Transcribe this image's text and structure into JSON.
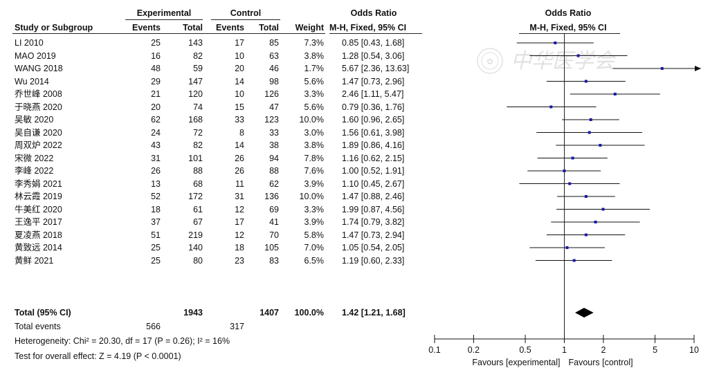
{
  "headers": {
    "group_experimental": "Experimental",
    "group_control": "Control",
    "or_header_table": "Odds Ratio",
    "or_header_plot": "Odds Ratio",
    "col_study": "Study or Subgroup",
    "col_e_events": "Events",
    "col_e_total": "Total",
    "col_c_events": "Events",
    "col_c_total": "Total",
    "col_weight": "Weight",
    "col_method": "M-H, Fixed, 95% CI",
    "plot_method": "M-H, Fixed, 95% CI"
  },
  "studies": [
    {
      "name": "LI 2010",
      "e_events": "25",
      "e_total": "143",
      "c_events": "17",
      "c_total": "85",
      "weight": "7.3%",
      "ci_text": "0.85 [0.43, 1.68]"
    },
    {
      "name": "MAO 2019",
      "e_events": "16",
      "e_total": "82",
      "c_events": "10",
      "c_total": "63",
      "weight": "3.8%",
      "ci_text": "1.28 [0.54, 3.06]"
    },
    {
      "name": "WANG 2018",
      "e_events": "48",
      "e_total": "59",
      "c_events": "20",
      "c_total": "46",
      "weight": "1.7%",
      "ci_text": "5.67 [2.36, 13.63]"
    },
    {
      "name": "Wu 2014",
      "e_events": "29",
      "e_total": "147",
      "c_events": "14",
      "c_total": "98",
      "weight": "5.6%",
      "ci_text": "1.47 [0.73, 2.96]"
    },
    {
      "name": "乔世峰 2008",
      "e_events": "21",
      "e_total": "120",
      "c_events": "10",
      "c_total": "126",
      "weight": "3.3%",
      "ci_text": "2.46 [1.11, 5.47]"
    },
    {
      "name": "于晓燕 2020",
      "e_events": "20",
      "e_total": "74",
      "c_events": "15",
      "c_total": "47",
      "weight": "5.6%",
      "ci_text": "0.79 [0.36, 1.76]"
    },
    {
      "name": "吴敏 2020",
      "e_events": "62",
      "e_total": "168",
      "c_events": "33",
      "c_total": "123",
      "weight": "10.0%",
      "ci_text": "1.60 [0.96, 2.65]"
    },
    {
      "name": "吴自谦 2020",
      "e_events": "24",
      "e_total": "72",
      "c_events": "8",
      "c_total": "33",
      "weight": "3.0%",
      "ci_text": "1.56 [0.61, 3.98]"
    },
    {
      "name": "周双炉 2022",
      "e_events": "43",
      "e_total": "82",
      "c_events": "14",
      "c_total": "38",
      "weight": "3.8%",
      "ci_text": "1.89 [0.86, 4.16]"
    },
    {
      "name": "宋微 2022",
      "e_events": "31",
      "e_total": "101",
      "c_events": "26",
      "c_total": "94",
      "weight": "7.8%",
      "ci_text": "1.16 [0.62, 2.15]"
    },
    {
      "name": "李峰 2022",
      "e_events": "26",
      "e_total": "88",
      "c_events": "26",
      "c_total": "88",
      "weight": "7.6%",
      "ci_text": "1.00 [0.52, 1.91]"
    },
    {
      "name": "李秀娟 2021",
      "e_events": "13",
      "e_total": "68",
      "c_events": "11",
      "c_total": "62",
      "weight": "3.9%",
      "ci_text": "1.10 [0.45, 2.67]"
    },
    {
      "name": "林云霞 2019",
      "e_events": "52",
      "e_total": "172",
      "c_events": "31",
      "c_total": "136",
      "weight": "10.0%",
      "ci_text": "1.47 [0.88, 2.46]"
    },
    {
      "name": "牛美红 2020",
      "e_events": "18",
      "e_total": "61",
      "c_events": "12",
      "c_total": "69",
      "weight": "3.3%",
      "ci_text": "1.99 [0.87, 4.56]"
    },
    {
      "name": "王逸平 2017",
      "e_events": "37",
      "e_total": "67",
      "c_events": "17",
      "c_total": "41",
      "weight": "3.9%",
      "ci_text": "1.74 [0.79, 3.82]"
    },
    {
      "name": "夏凌燕 2018",
      "e_events": "51",
      "e_total": "219",
      "c_events": "12",
      "c_total": "70",
      "weight": "5.8%",
      "ci_text": "1.47 [0.73, 2.94]"
    },
    {
      "name": "黄致远 2014",
      "e_events": "25",
      "e_total": "140",
      "c_events": "18",
      "c_total": "105",
      "weight": "7.0%",
      "ci_text": "1.05 [0.54, 2.05]"
    },
    {
      "name": "黄鲜 2021",
      "e_events": "25",
      "e_total": "80",
      "c_events": "23",
      "c_total": "83",
      "weight": "6.5%",
      "ci_text": "1.19 [0.60, 2.33]"
    }
  ],
  "total": {
    "label": "Total (95% CI)",
    "e_total": "1943",
    "c_total": "1407",
    "weight": "100.0%",
    "ci_text": "1.42 [1.21, 1.68]"
  },
  "events": {
    "label": "Total events",
    "e_events": "566",
    "c_events": "317"
  },
  "heterogeneity": "Heterogeneity: Chi² = 20.30, df = 17 (P = 0.26); I² = 16%",
  "overall_effect": "Test for overall effect: Z = 4.19 (P < 0.0001)",
  "watermark_text": "中华医学会",
  "chart_data": {
    "type": "forest",
    "x_scale": "log",
    "xlim": [
      0.1,
      10
    ],
    "ticks": [
      0.1,
      0.2,
      0.5,
      1,
      2,
      5,
      10
    ],
    "tick_labels": [
      "0.1",
      "0.2",
      "0.5",
      "1",
      "2",
      "5",
      "10"
    ],
    "label_left": "Favours [experimental]",
    "label_right": "Favours [control]",
    "marker_color": "#1a1aa6",
    "studies": [
      {
        "or": 0.85,
        "lo": 0.43,
        "hi": 1.68
      },
      {
        "or": 1.28,
        "lo": 0.54,
        "hi": 3.06
      },
      {
        "or": 5.67,
        "lo": 2.36,
        "hi": 13.63
      },
      {
        "or": 1.47,
        "lo": 0.73,
        "hi": 2.96
      },
      {
        "or": 2.46,
        "lo": 1.11,
        "hi": 5.47
      },
      {
        "or": 0.79,
        "lo": 0.36,
        "hi": 1.76
      },
      {
        "or": 1.6,
        "lo": 0.96,
        "hi": 2.65
      },
      {
        "or": 1.56,
        "lo": 0.61,
        "hi": 3.98
      },
      {
        "or": 1.89,
        "lo": 0.86,
        "hi": 4.16
      },
      {
        "or": 1.16,
        "lo": 0.62,
        "hi": 2.15
      },
      {
        "or": 1.0,
        "lo": 0.52,
        "hi": 1.91
      },
      {
        "or": 1.1,
        "lo": 0.45,
        "hi": 2.67
      },
      {
        "or": 1.47,
        "lo": 0.88,
        "hi": 2.46
      },
      {
        "or": 1.99,
        "lo": 0.87,
        "hi": 4.56
      },
      {
        "or": 1.74,
        "lo": 0.79,
        "hi": 3.82
      },
      {
        "or": 1.47,
        "lo": 0.73,
        "hi": 2.94
      },
      {
        "or": 1.05,
        "lo": 0.54,
        "hi": 2.05
      },
      {
        "or": 1.19,
        "lo": 0.6,
        "hi": 2.33
      }
    ],
    "pooled": {
      "or": 1.42,
      "lo": 1.21,
      "hi": 1.68
    }
  }
}
